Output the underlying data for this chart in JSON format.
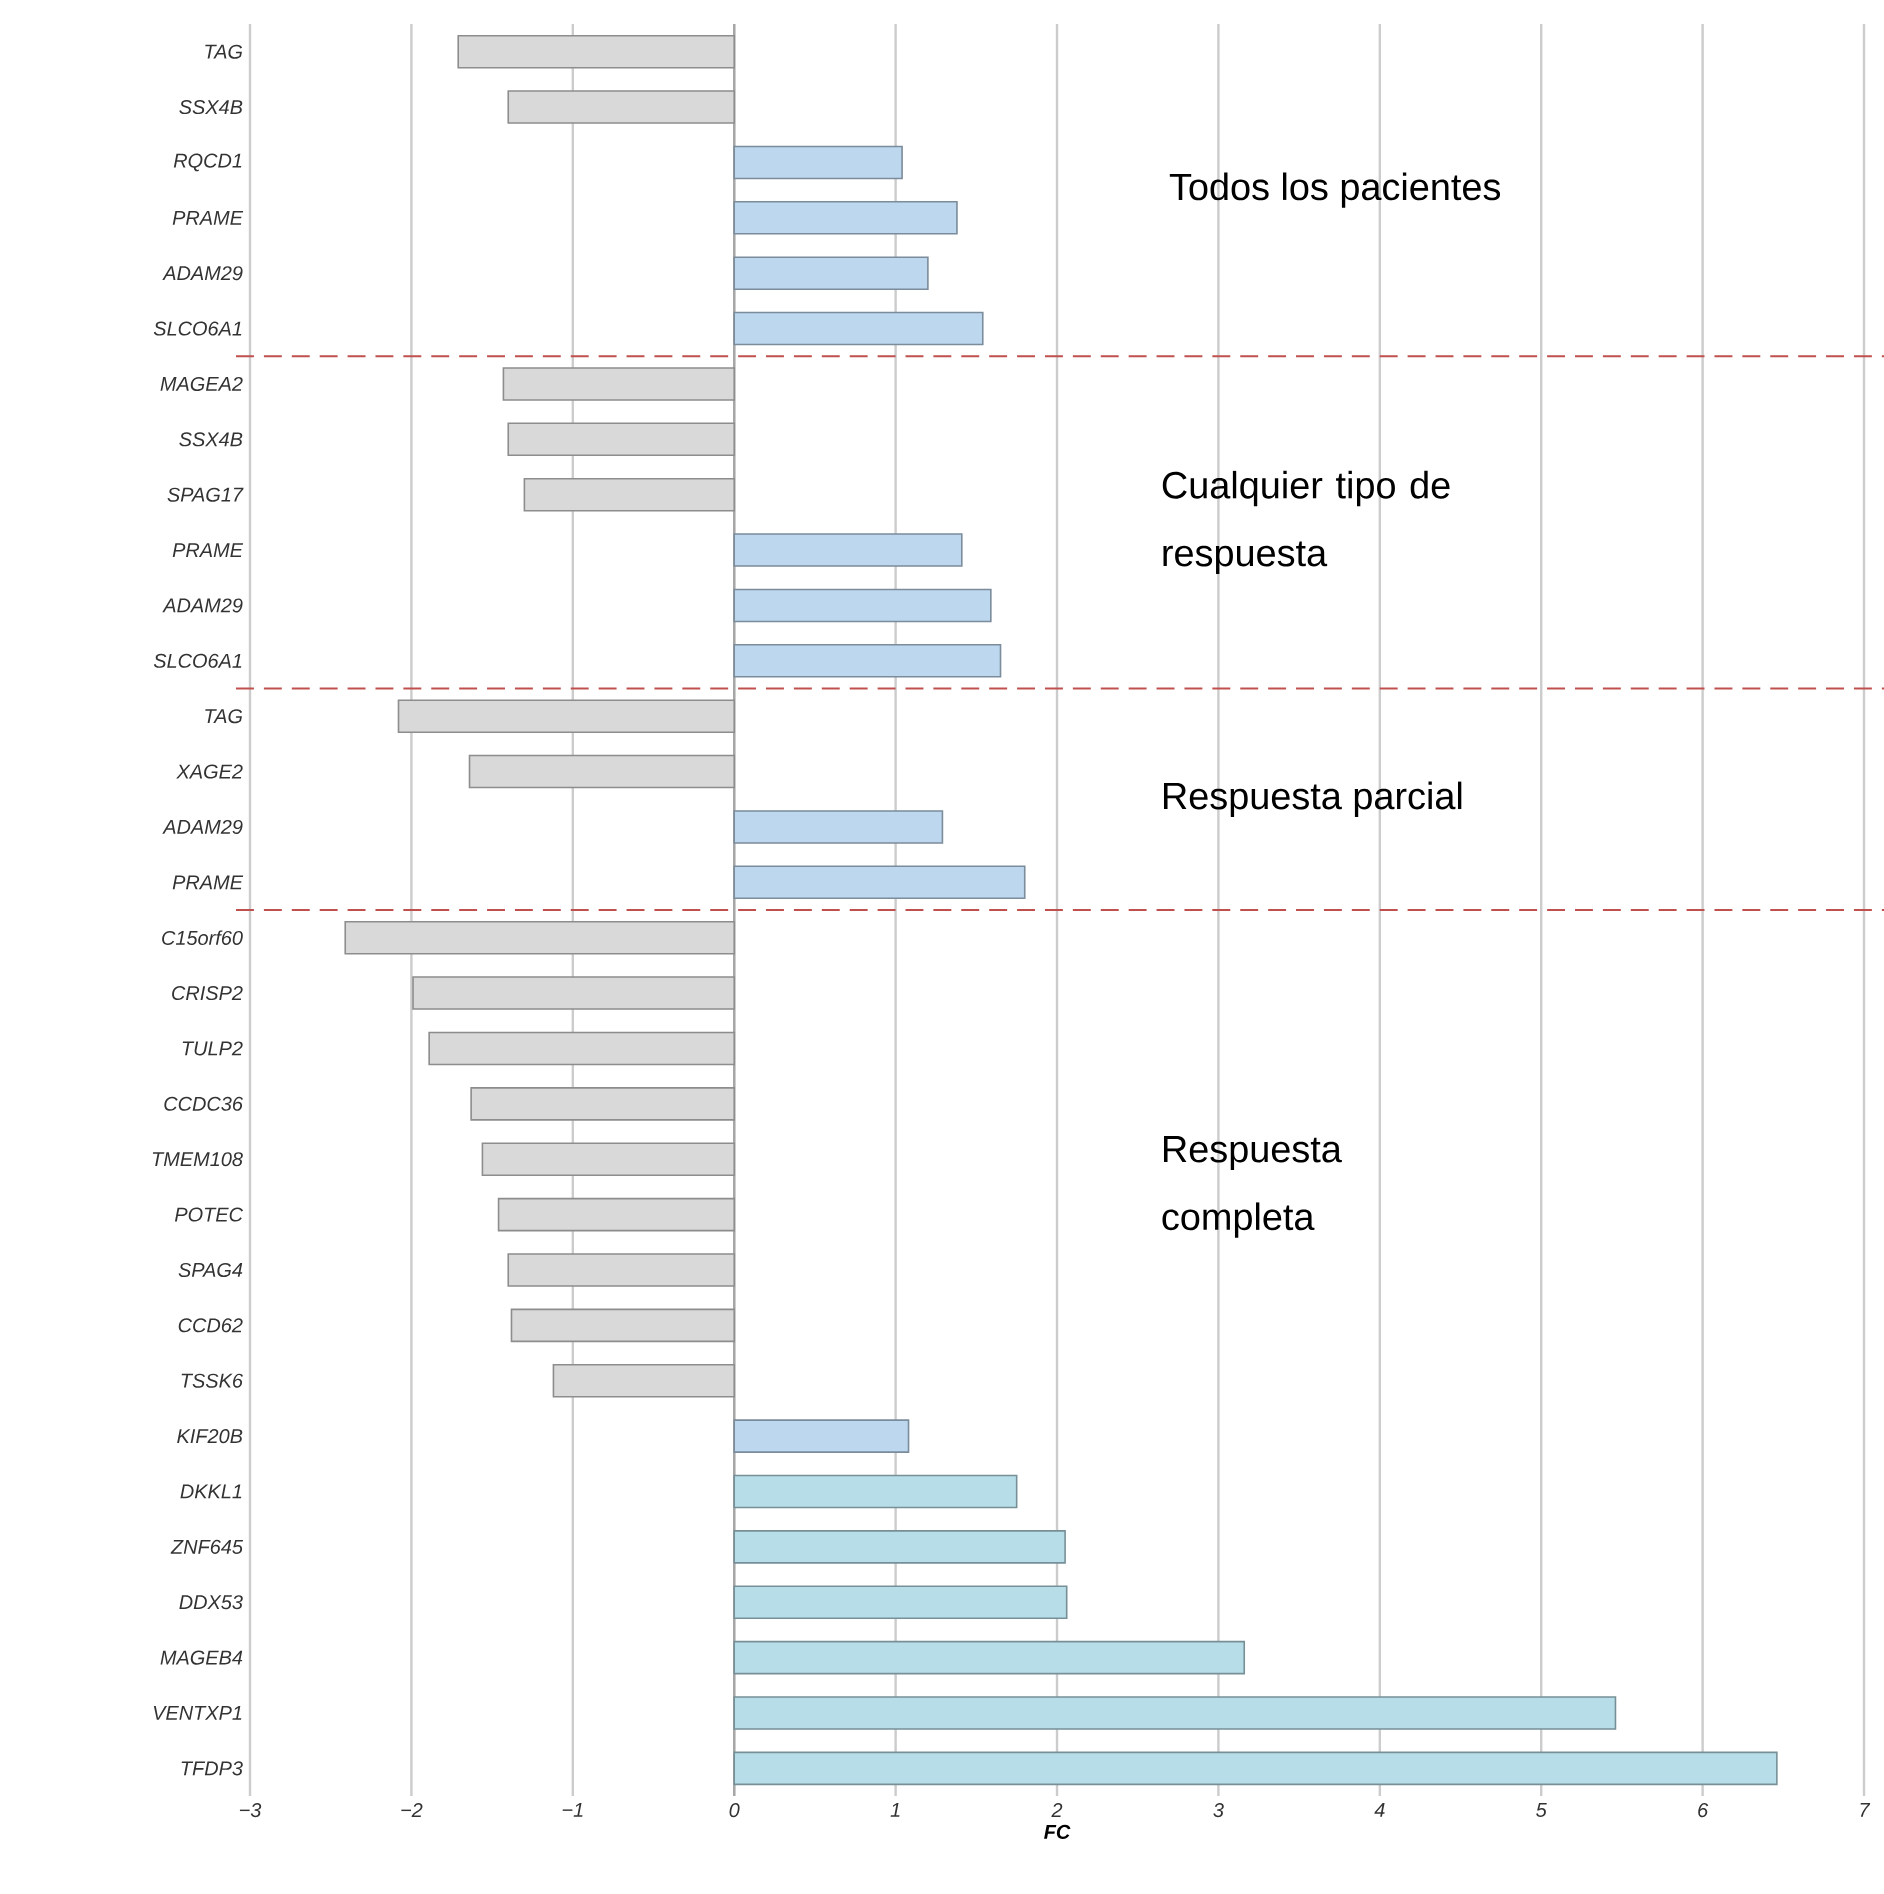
{
  "chart_data": {
    "type": "bar",
    "orientation": "horizontal",
    "xlabel": "FC",
    "categories": [
      "TAG",
      "SSX4B",
      "RQCD1",
      "PRAME",
      "ADAM29",
      "SLCO6A1",
      "MAGEA2",
      "SSX4B",
      "SPAG17",
      "PRAME",
      "ADAM29",
      "SLCO6A1",
      "TAG",
      "XAGE2",
      "ADAM29",
      "PRAME",
      "C15orf60",
      "CRISP2",
      "TULP2",
      "CCDC36",
      "TMEM108",
      "POTEC",
      "SPAG4",
      "CCD62",
      "TSSK6",
      "KIF20B",
      "DKKL1",
      "ZNF645",
      "DDX53",
      "MAGEB4",
      "VENTXP1",
      "TFDP3"
    ],
    "values": [
      -1.71,
      -1.4,
      1.04,
      1.38,
      1.2,
      1.54,
      -1.43,
      -1.4,
      -1.3,
      1.41,
      1.59,
      1.65,
      -2.08,
      -1.64,
      1.29,
      1.8,
      -2.41,
      -1.99,
      -1.89,
      -1.63,
      -1.56,
      -1.46,
      -1.4,
      -1.38,
      -1.12,
      1.08,
      1.75,
      2.05,
      2.06,
      3.16,
      5.46,
      6.46
    ],
    "colors": [
      "#d9d9d9",
      "#d9d9d9",
      "#bdd7ee",
      "#bdd7ee",
      "#bdd7ee",
      "#bdd7ee",
      "#d9d9d9",
      "#d9d9d9",
      "#d9d9d9",
      "#bdd7ee",
      "#bdd7ee",
      "#bdd7ee",
      "#d9d9d9",
      "#d9d9d9",
      "#bdd7ee",
      "#bdd7ee",
      "#d9d9d9",
      "#d9d9d9",
      "#d9d9d9",
      "#d9d9d9",
      "#d9d9d9",
      "#d9d9d9",
      "#d9d9d9",
      "#d9d9d9",
      "#d9d9d9",
      "#bdd7ee",
      "#b7dee8",
      "#b7dee8",
      "#b7dee8",
      "#b7dee8",
      "#b7dee8",
      "#b7dee8"
    ],
    "xlim": [
      -3,
      7
    ],
    "xticks": [
      {
        "value": -3,
        "label": "−3"
      },
      {
        "value": -2,
        "label": "−2"
      },
      {
        "value": -1,
        "label": "−1"
      },
      0,
      1,
      2,
      3,
      4,
      5,
      6,
      7
    ],
    "grid": "x",
    "annotations": [
      "Todos los pacientes",
      "Cualquier tipo de respuesta",
      "Respuesta parcial",
      "Respuesta completa"
    ]
  }
}
